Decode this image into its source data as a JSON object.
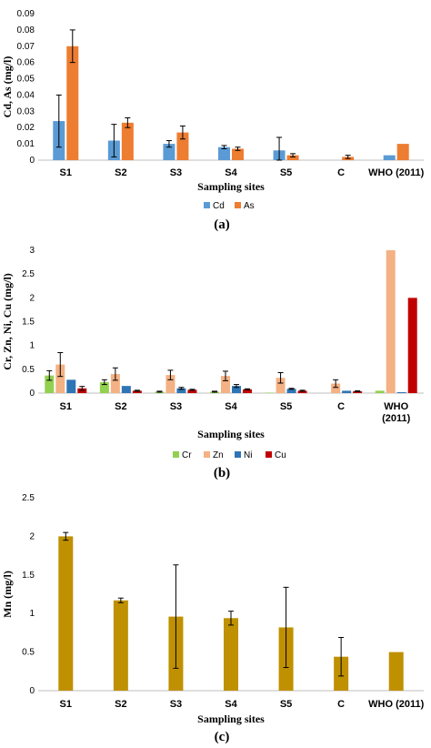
{
  "chart_data": [
    {
      "type": "bar",
      "panel": "(a)",
      "categories": [
        "S1",
        "S2",
        "S3",
        "S4",
        "S5",
        "C",
        "WHO (2011)"
      ],
      "series": [
        {
          "name": "Cd",
          "color": "#5B9BD5",
          "values": [
            0.024,
            0.012,
            0.01,
            0.008,
            0.006,
            0,
            0.003
          ],
          "errors": [
            0.016,
            0.01,
            0.002,
            0.001,
            0.008,
            0,
            0
          ]
        },
        {
          "name": "As",
          "color": "#ED7D31",
          "values": [
            0.07,
            0.023,
            0.017,
            0.007,
            0.003,
            0.002,
            0.01
          ],
          "errors": [
            0.01,
            0.003,
            0.004,
            0.001,
            0.001,
            0.001,
            0
          ]
        }
      ],
      "xlabel": "Sampling sites",
      "ylabel": "Cd, As (mg/l)",
      "ylim": [
        0,
        0.09
      ],
      "yticks": [
        "0",
        "0.01",
        "0.02",
        "0.03",
        "0.04",
        "0.05",
        "0.06",
        "0.07",
        "0.08",
        "0.09"
      ],
      "legend": "bottom"
    },
    {
      "type": "bar",
      "panel": "(b)",
      "categories": [
        "S1",
        "S2",
        "S3",
        "S4",
        "S5",
        "C",
        "WHO\n(2011)"
      ],
      "series": [
        {
          "name": "Cr",
          "color": "#92D050",
          "values": [
            0.37,
            0.23,
            0.03,
            0.03,
            0.01,
            0,
            0.05
          ],
          "errors": [
            0.1,
            0.05,
            0.01,
            0.01,
            0,
            0,
            0
          ]
        },
        {
          "name": "Zn",
          "color": "#F4B183",
          "values": [
            0.6,
            0.4,
            0.38,
            0.36,
            0.32,
            0.2,
            3.0
          ],
          "errors": [
            0.25,
            0.13,
            0.1,
            0.1,
            0.11,
            0.08,
            0
          ]
        },
        {
          "name": "Ni",
          "color": "#2E75B6",
          "values": [
            0.28,
            0.15,
            0.1,
            0.15,
            0.09,
            0.05,
            0.02
          ],
          "errors": [
            0,
            0,
            0.02,
            0.03,
            0.01,
            0,
            0
          ]
        },
        {
          "name": "Cu",
          "color": "#C00000",
          "values": [
            0.1,
            0.05,
            0.07,
            0.08,
            0.05,
            0.04,
            2.0
          ],
          "errors": [
            0.04,
            0.01,
            0.01,
            0.01,
            0.01,
            0.01,
            0
          ]
        }
      ],
      "xlabel": "Sampling sites",
      "ylabel": "Cr, Zn, Ni, Cu (mg/l)",
      "ylim": [
        0,
        3
      ],
      "yticks": [
        "0",
        "0.5",
        "1",
        "1.5",
        "2",
        "2.5",
        "3"
      ],
      "legend": "bottom"
    },
    {
      "type": "bar",
      "panel": "(c)",
      "categories": [
        "S1",
        "S2",
        "S3",
        "S4",
        "S5",
        "C",
        "WHO (2011)"
      ],
      "series": [
        {
          "name": "Mn",
          "color": "#BF9000",
          "values": [
            2.0,
            1.17,
            0.96,
            0.94,
            0.82,
            0.44,
            0.5
          ],
          "errors": [
            0.05,
            0.03,
            0.67,
            0.09,
            0.52,
            0.25,
            0
          ]
        }
      ],
      "xlabel": "Sampling sites",
      "ylabel": "Mn (mg/l)",
      "ylim": [
        0,
        2.5
      ],
      "yticks": [
        "0",
        "0.5",
        "1",
        "1.5",
        "2",
        "2.5"
      ],
      "legend": "none"
    }
  ]
}
